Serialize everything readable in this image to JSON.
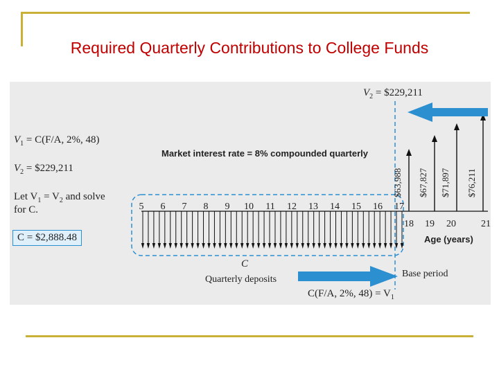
{
  "slide": {
    "title": "Required Quarterly Contributions to College Funds",
    "accent_color": "#c00000",
    "frame_color": "#c9b037"
  },
  "figure": {
    "interest_note": "Market interest rate = 8% compounded quarterly",
    "eq1_lhs": "V",
    "eq1_sub": "1",
    "eq1_rhs": " = C(F/A, 2%, 48)",
    "eq2_lhs": "V",
    "eq2_sub": "2",
    "eq2_rhs": " = $229,211",
    "solve_a": "Let V",
    "solve_sub1": "1",
    "solve_b": " = V",
    "solve_sub2": "2",
    "solve_c": " and solve",
    "solve_line2": "for C.",
    "result": "C = $2,888.48",
    "v2_top_lhs": "V",
    "v2_top_sub": "2",
    "v2_top_rhs": " = $229,211",
    "deposit_symbol": "C",
    "deposits_label": "Quarterly deposits",
    "base_period": "Base period",
    "fa_lhs": "C(F/A, 2%, 48) = V",
    "fa_sub": "1",
    "age_label": "Age (years)",
    "ages_before": [
      "5",
      "6",
      "7",
      "8",
      "9",
      "10",
      "11",
      "12",
      "13",
      "14",
      "15",
      "16",
      "17"
    ],
    "ages_after": [
      "18",
      "19",
      "20",
      "21"
    ],
    "withdrawals": [
      {
        "age": "18",
        "amount": "$63,988"
      },
      {
        "age": "19",
        "amount": "$67,827"
      },
      {
        "age": "20",
        "amount": "$71,897"
      },
      {
        "age": "21",
        "amount": "$76,211"
      }
    ],
    "deposit_arrow_count": 48,
    "arrow_color": "#2b8fd0"
  }
}
